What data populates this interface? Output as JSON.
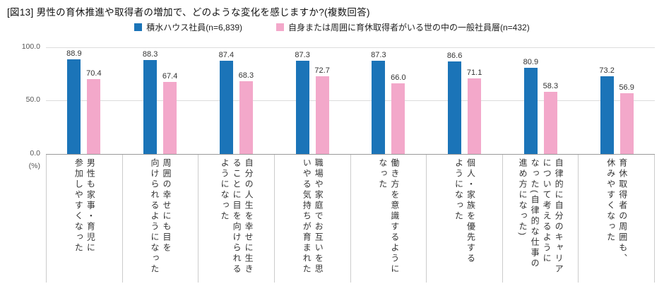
{
  "title": "[図13] 男性の育休推進や取得者の増加で、どのような変化を感じますか?(複数回答)",
  "legend": {
    "items": [
      {
        "label": "積水ハウス社員(n=6,839)",
        "color": "#1b74b8"
      },
      {
        "label": "自身または周囲に育休取得者がいる世の中の一般社員層(n=432)",
        "color": "#f3a8ca"
      }
    ]
  },
  "axis": {
    "ticks": [
      "100.0",
      "50.0",
      "0.0"
    ],
    "unit": "(%)"
  },
  "chart_data": {
    "type": "bar",
    "title": "男性の育休推進や取得者の増加で、どのような変化を感じますか?(複数回答)",
    "categories": [
      "男性も家事・育児に\n参加しやすくなった",
      "周囲の幸せにも目を\n向けられるようになった",
      "自分の人生を幸せに生き\nることに目を向けられる\nようになった",
      "職場や家庭でお互いを思\nいやる気持ちが育まれた",
      "働き方を意識するように\nなった",
      "個人・家族を優先する\nようになった",
      "自律的に自分のキャリア\nについて考えるように\nなった(自律的な仕事の\n進め方になった)",
      "育休取得者の周囲も、\n休みやすくなった"
    ],
    "series": [
      {
        "name": "積水ハウス社員(n=6,839)",
        "color": "#1b74b8",
        "values": [
          88.9,
          88.3,
          87.4,
          87.3,
          87.3,
          86.6,
          80.9,
          73.2
        ]
      },
      {
        "name": "自身または周囲に育休取得者がいる世の中の一般社員層(n=432)",
        "color": "#f3a8ca",
        "values": [
          70.4,
          67.4,
          68.3,
          72.7,
          66.0,
          71.1,
          58.3,
          56.9
        ]
      }
    ],
    "ylim": [
      0,
      100
    ],
    "yticks": [
      0,
      50,
      100
    ],
    "ylabel": "(%)",
    "grid": true,
    "legend_position": "top",
    "value_labels": true
  }
}
